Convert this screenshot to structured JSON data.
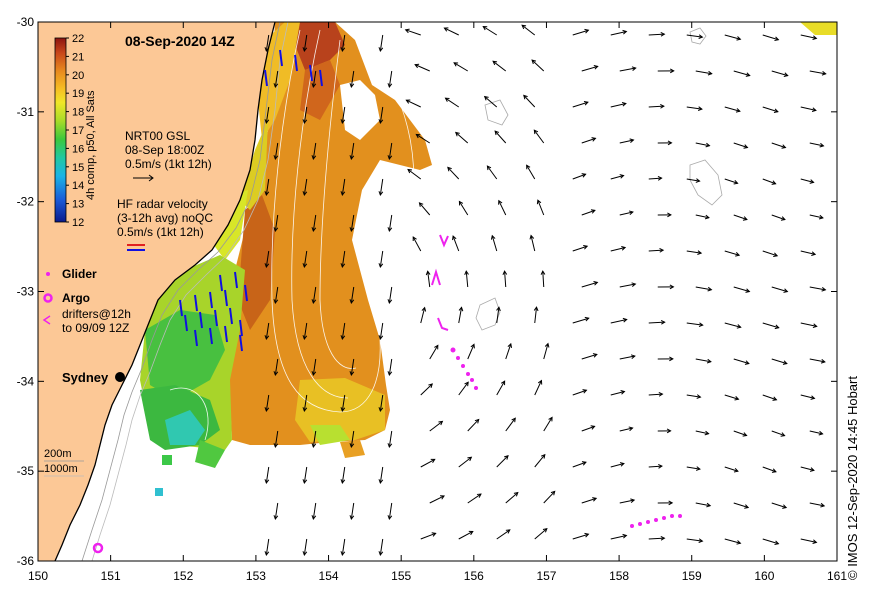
{
  "map": {
    "title": "08-Sep-2020 14Z",
    "credit": "© IMOS 12-Sep-2020 14:45 Hobart",
    "x_axis": {
      "ticks": [
        "150",
        "151",
        "152",
        "153",
        "154",
        "155",
        "156",
        "157",
        "158",
        "159",
        "160",
        "161"
      ]
    },
    "y_axis": {
      "ticks": [
        "-30",
        "-31",
        "-32",
        "-33",
        "-34",
        "-35",
        "-36"
      ]
    },
    "lon_range": [
      150,
      161
    ],
    "lat_range": [
      -36,
      -30
    ],
    "colorbar": {
      "label": "4h comp, p50, All Sats",
      "ticks": [
        "22",
        "21",
        "20",
        "19",
        "18",
        "17",
        "16",
        "15",
        "14",
        "13",
        "12"
      ],
      "range": [
        12,
        22
      ]
    },
    "legend": {
      "nrt_title": "NRT00 GSL",
      "nrt_time": "08-Sep 18:00Z",
      "nrt_scale": "0.5m/s (1kt 12h)",
      "hf_title": "HF radar velocity",
      "hf_avg": "(3-12h avg) noQC",
      "hf_scale": "0.5m/s (1kt 12h)",
      "glider": "Glider",
      "argo": "Argo",
      "drifters_1": "drifters@12h",
      "drifters_2": "to 09/09 12Z",
      "depth_200": "200m",
      "depth_1000": "1000m"
    },
    "places": {
      "sydney": "Sydney"
    },
    "colors": {
      "land": "#fcc896",
      "ocean": "#ffffff",
      "hf_arrow": "#1010e0",
      "marker": "#ee22ee",
      "contour": "#ffffff"
    }
  }
}
